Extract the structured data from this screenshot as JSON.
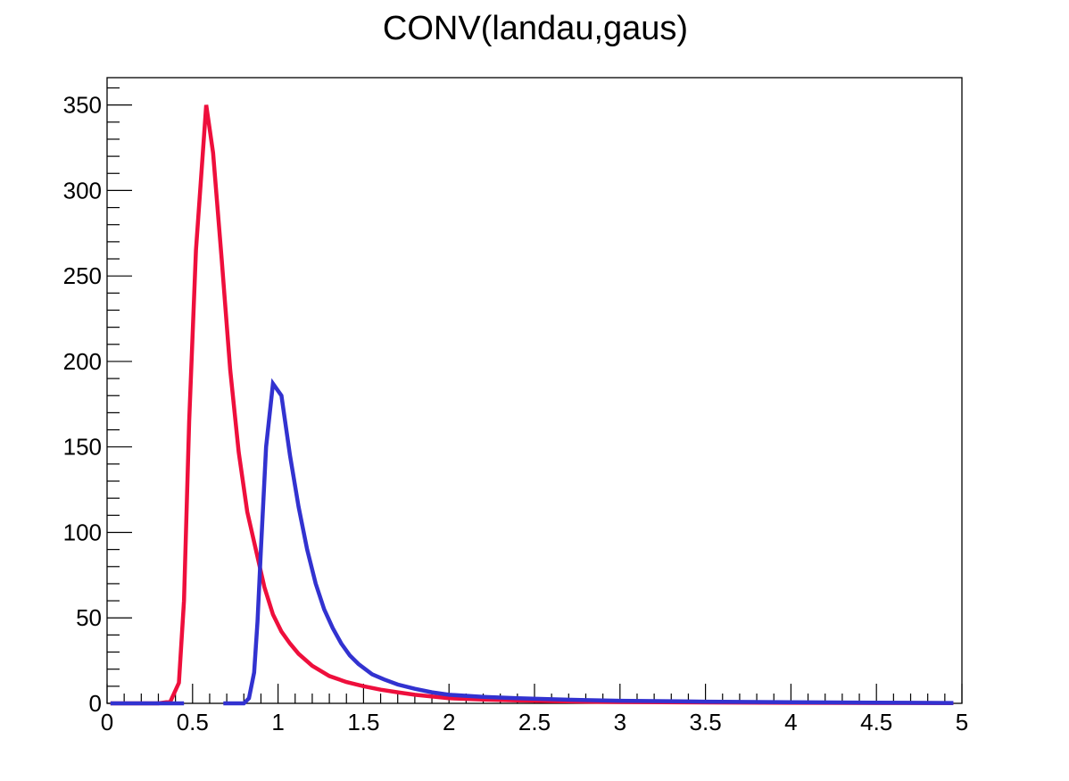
{
  "chart_data": {
    "type": "line",
    "title": "CONV(landau,gaus)",
    "xlabel": "",
    "ylabel": "",
    "xlim": [
      0,
      5
    ],
    "ylim": [
      0,
      366
    ],
    "grid": false,
    "legend": "none",
    "x_ticks": [
      0,
      0.5,
      1,
      1.5,
      2,
      2.5,
      3,
      3.5,
      4,
      4.5,
      5
    ],
    "x_tick_labels": [
      "0",
      "0.5",
      "1",
      "1.5",
      "2",
      "2.5",
      "3",
      "3.5",
      "4",
      "4.5",
      "5"
    ],
    "y_ticks": [
      0,
      50,
      100,
      150,
      200,
      250,
      300,
      350
    ],
    "y_tick_labels": [
      "0",
      "50",
      "100",
      "150",
      "200",
      "250",
      "300",
      "350"
    ],
    "series": [
      {
        "color": "#ee0f3c",
        "segments": [
          {
            "x": [
              0.02,
              0.1,
              0.2,
              0.3,
              0.37,
              0.42,
              0.45,
              0.48,
              0.52,
              0.58,
              0.62,
              0.67,
              0.72,
              0.77,
              0.82,
              0.87,
              0.92,
              0.97,
              1.02,
              1.07,
              1.12,
              1.2,
              1.3,
              1.4,
              1.5,
              1.6,
              1.7,
              1.8,
              2.0,
              2.2,
              2.4,
              2.6,
              2.8,
              3.0,
              3.5,
              4.0,
              4.5,
              4.95
            ],
            "y": [
              0,
              0,
              0,
              0,
              1,
              12,
              60,
              165,
              265,
              350,
              322,
              260,
              195,
              147,
              112,
              90,
              68,
              52,
              42,
              35,
              29,
              22,
              16,
              12.5,
              10,
              8,
              6.5,
              5,
              3,
              2.2,
              1.7,
              1.3,
              1,
              0.8,
              0.5,
              0.3,
              0.2,
              0.1
            ]
          }
        ]
      },
      {
        "color": "#3232d0",
        "segments": [
          {
            "x": [
              0.02,
              0.1,
              0.2,
              0.3,
              0.4,
              0.45
            ],
            "y": [
              0,
              0,
              0,
              0,
              0,
              0
            ]
          },
          {
            "x": [
              0.68,
              0.75,
              0.8,
              0.83,
              0.86,
              0.88,
              0.9,
              0.93,
              0.97,
              1.02,
              1.07,
              1.12,
              1.17,
              1.22,
              1.27,
              1.32,
              1.37,
              1.42,
              1.47,
              1.55,
              1.62,
              1.7,
              1.8,
              1.9,
              2.0,
              2.2,
              2.4,
              2.6,
              2.8,
              3.0,
              3.5,
              4.0,
              4.5,
              4.95
            ],
            "y": [
              0,
              0,
              0,
              3,
              18,
              48,
              90,
              150,
              187,
              180,
              145,
              115,
              90,
              70,
              55,
              44,
              35,
              28,
              23,
              17,
              14,
              11,
              8.5,
              6.5,
              5,
              3.8,
              3,
              2.4,
              1.9,
              1.5,
              1,
              0.7,
              0.4,
              0.2
            ]
          }
        ]
      }
    ]
  }
}
